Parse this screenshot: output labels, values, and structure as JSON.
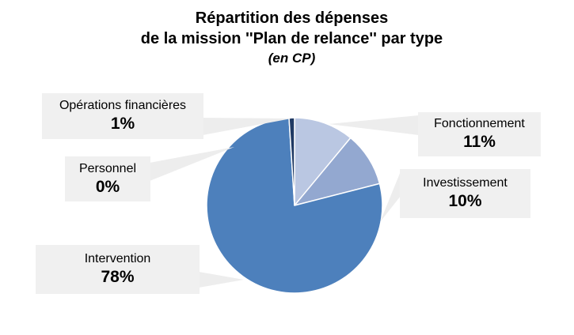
{
  "title": {
    "line1": "Répartition des dépenses",
    "line2": "de la mission ''Plan de relance'' par type",
    "line3": "(en CP)"
  },
  "chart_data": {
    "type": "pie",
    "title": "Répartition des dépenses de la mission ''Plan de relance'' par type (en CP)",
    "start_angle_deg": 0,
    "direction": "clockwise",
    "legend_position": "callout-labels",
    "slices": [
      {
        "label": "Fonctionnement",
        "value": 11,
        "pct_label": "11%",
        "color": "#bac7e2"
      },
      {
        "label": "Investissement",
        "value": 10,
        "pct_label": "10%",
        "color": "#93a8d0"
      },
      {
        "label": "Intervention",
        "value": 78,
        "pct_label": "78%",
        "color": "#4d80bc"
      },
      {
        "label": "Personnel",
        "value": 0,
        "pct_label": "0%",
        "color": "#4d80bc"
      },
      {
        "label": "Opérations financières",
        "value": 1,
        "pct_label": "1%",
        "color": "#203a64"
      }
    ]
  },
  "callouts": {
    "operations": {
      "label": "Opérations financières",
      "pct": "1%"
    },
    "personnel": {
      "label": "Personnel",
      "pct": "0%"
    },
    "fonctionnement": {
      "label": "Fonctionnement",
      "pct": "11%"
    },
    "investissement": {
      "label": "Investissement",
      "pct": "10%"
    },
    "intervention": {
      "label": "Intervention",
      "pct": "78%"
    }
  },
  "colors": {
    "pie_main_blue": "#4d80bc",
    "pie_light_blue": "#bac7e2",
    "pie_medium_blue": "#93a8d0",
    "pie_navy": "#203a64",
    "slice_border": "#ffffff",
    "callout_bg": "#f0f0f0",
    "leader_fill": "#ededed"
  }
}
